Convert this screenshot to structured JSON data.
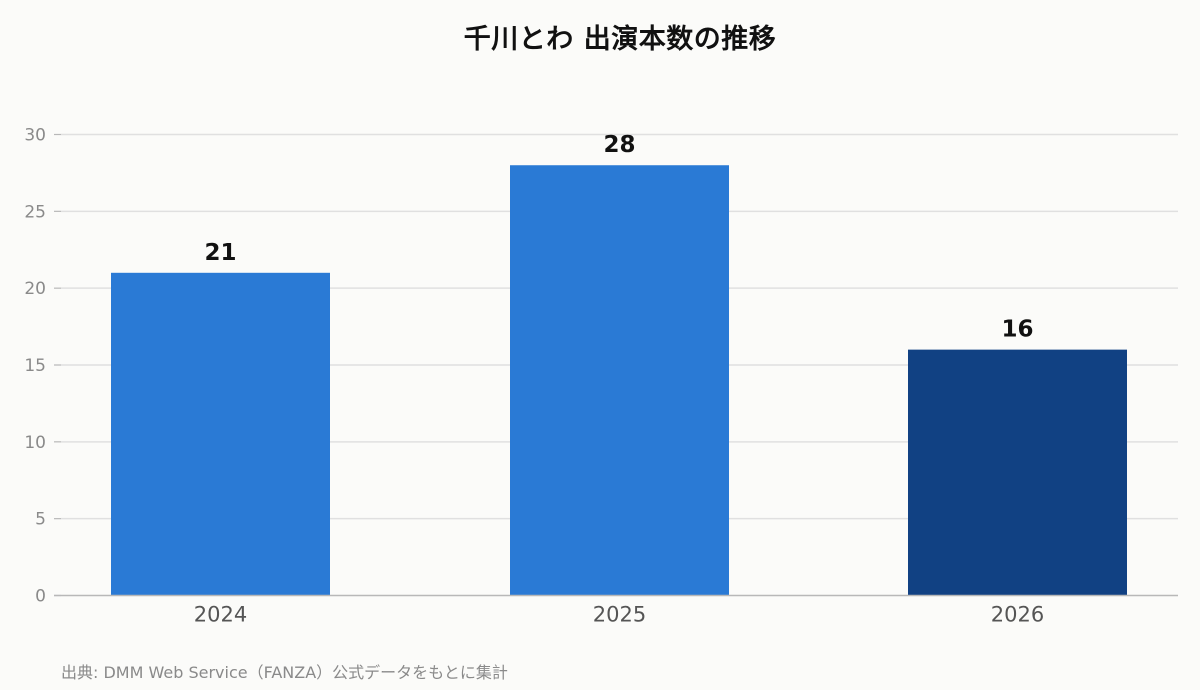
{
  "chart_data": {
    "type": "bar",
    "title": "千川とわ 出演本数の推移",
    "xlabel": "",
    "ylabel": "",
    "categories": [
      "2024",
      "2025",
      "2026"
    ],
    "values": [
      21,
      28,
      16
    ],
    "value_labels": [
      "21",
      "28",
      "16"
    ],
    "bar_colors": [
      "#2a7ad5",
      "#2a7ad5",
      "#114183"
    ],
    "ylim": [
      0,
      30
    ],
    "yticks": [
      0,
      5,
      10,
      15,
      20,
      25,
      30
    ],
    "ytick_labels": [
      "0",
      "5",
      "10",
      "15",
      "20",
      "25",
      "30"
    ],
    "grid": "horizontal",
    "legend": "none"
  },
  "source": "出典: DMM Web Service（FANZA）公式データをもとに集計",
  "colors": {
    "background": "#fbfbf9",
    "gridline": "#e0e0e0",
    "axis": "#b8b8b8"
  }
}
